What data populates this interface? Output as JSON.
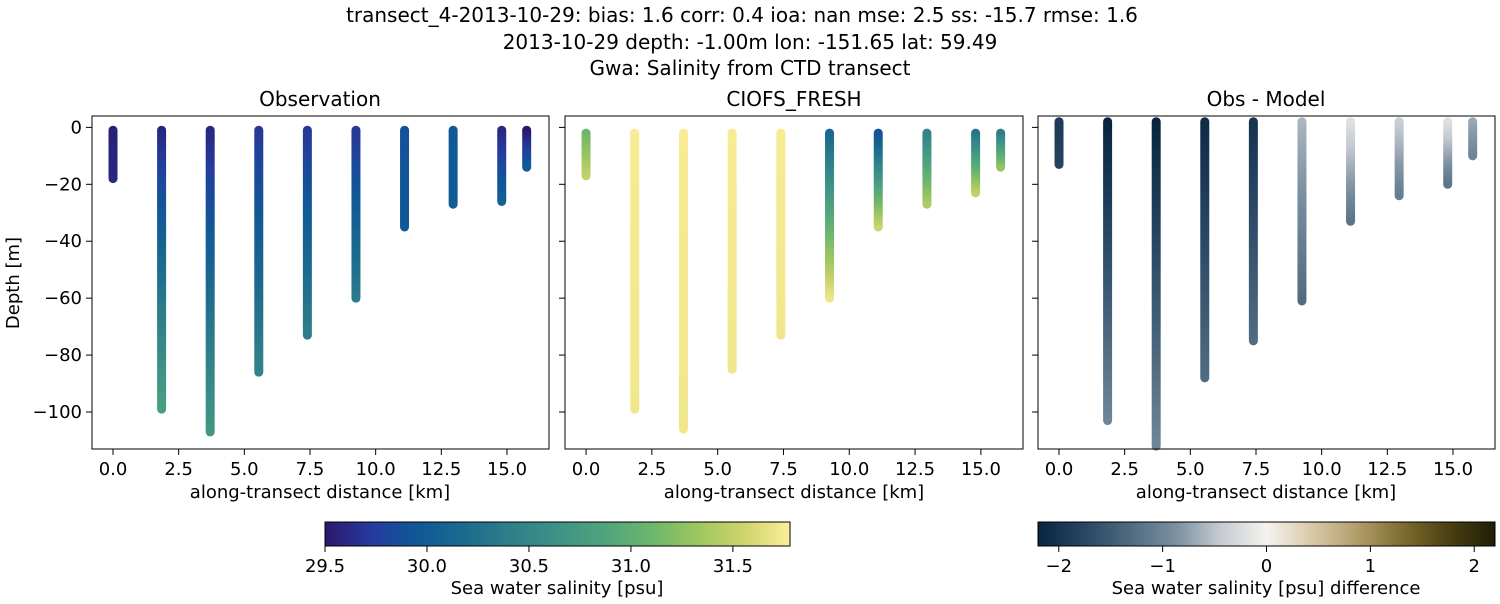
{
  "figure": {
    "title_lines": [
      "transect_4-2013-10-29: bias: 1.6  corr: 0.4  ioa: nan  mse: 2.5  ss: -15.7  rmse: 1.6",
      "2013-10-29 depth: -1.00m lon: -151.65 lat: 59.49",
      "Gwa: Salinity from CTD transect"
    ]
  },
  "chart_data": [
    {
      "type": "scatter",
      "title": "Observation",
      "xlabel": "along-transect distance [km]",
      "ylabel": "Depth [m]",
      "xlim": [
        -0.8,
        16.6
      ],
      "ylim": [
        -113,
        4
      ],
      "xticks": [
        0.0,
        2.5,
        5.0,
        7.5,
        10.0,
        12.5,
        15.0
      ],
      "xtick_labels": [
        "0.0",
        "2.5",
        "5.0",
        "7.5",
        "10.0",
        "12.5",
        "15.0"
      ],
      "yticks": [
        0,
        -20,
        -40,
        -60,
        -80,
        -100
      ],
      "ytick_labels": [
        "0",
        "−20",
        "−40",
        "−60",
        "−80",
        "−100"
      ],
      "colormap": "haline",
      "casts": [
        {
          "x": 0.0,
          "depth_top": -1,
          "depth_bottom": -18,
          "value_top": 29.55,
          "value_bottom": 29.6
        },
        {
          "x": 1.85,
          "depth_top": -1,
          "depth_bottom": -99,
          "value_top": 29.6,
          "value_bottom": 30.8
        },
        {
          "x": 3.7,
          "depth_top": -1,
          "depth_bottom": -107,
          "value_top": 29.6,
          "value_bottom": 30.7
        },
        {
          "x": 5.55,
          "depth_top": -1,
          "depth_bottom": -86,
          "value_top": 29.7,
          "value_bottom": 30.45
        },
        {
          "x": 7.4,
          "depth_top": -1,
          "depth_bottom": -73,
          "value_top": 29.7,
          "value_bottom": 30.4
        },
        {
          "x": 9.25,
          "depth_top": -1,
          "depth_bottom": -60,
          "value_top": 29.7,
          "value_bottom": 30.35
        },
        {
          "x": 11.1,
          "depth_top": -1,
          "depth_bottom": -35,
          "value_top": 29.9,
          "value_bottom": 29.95
        },
        {
          "x": 12.95,
          "depth_top": -1,
          "depth_bottom": -27,
          "value_top": 29.95,
          "value_bottom": 30.0
        },
        {
          "x": 14.8,
          "depth_top": -1,
          "depth_bottom": -26,
          "value_top": 29.6,
          "value_bottom": 30.05
        },
        {
          "x": 15.75,
          "depth_top": -1,
          "depth_bottom": -14,
          "value_top": 29.5,
          "value_bottom": 30.0
        }
      ]
    },
    {
      "type": "scatter",
      "title": "CIOFS_FRESH",
      "xlabel": "along-transect distance [km]",
      "xlim": [
        -0.8,
        16.6
      ],
      "ylim": [
        -113,
        4
      ],
      "xticks": [
        0.0,
        2.5,
        5.0,
        7.5,
        10.0,
        12.5,
        15.0
      ],
      "xtick_labels": [
        "0.0",
        "2.5",
        "5.0",
        "7.5",
        "10.0",
        "12.5",
        "15.0"
      ],
      "yticks": [
        0,
        -20,
        -40,
        -60,
        -80,
        -100
      ],
      "colormap": "haline",
      "casts": [
        {
          "x": 0.0,
          "depth_top": -2,
          "depth_bottom": -17,
          "value_top": 31.1,
          "value_bottom": 31.5
        },
        {
          "x": 1.85,
          "depth_top": -2,
          "depth_bottom": -99,
          "value_top": 31.75,
          "value_bottom": 31.72
        },
        {
          "x": 3.7,
          "depth_top": -2,
          "depth_bottom": -106,
          "value_top": 31.75,
          "value_bottom": 31.72
        },
        {
          "x": 5.55,
          "depth_top": -2,
          "depth_bottom": -85,
          "value_top": 31.75,
          "value_bottom": 31.72
        },
        {
          "x": 7.4,
          "depth_top": -2,
          "depth_bottom": -73,
          "value_top": 31.75,
          "value_bottom": 31.72
        },
        {
          "x": 9.25,
          "depth_top": -2,
          "depth_bottom": -60,
          "value_top": 30.15,
          "value_bottom": 31.7
        },
        {
          "x": 11.1,
          "depth_top": -2,
          "depth_bottom": -35,
          "value_top": 29.9,
          "value_bottom": 31.55
        },
        {
          "x": 12.95,
          "depth_top": -2,
          "depth_bottom": -27,
          "value_top": 30.45,
          "value_bottom": 31.4
        },
        {
          "x": 14.8,
          "depth_top": -2,
          "depth_bottom": -23,
          "value_top": 30.3,
          "value_bottom": 31.5
        },
        {
          "x": 15.75,
          "depth_top": -2,
          "depth_bottom": -14,
          "value_top": 30.4,
          "value_bottom": 31.3
        }
      ]
    },
    {
      "type": "scatter",
      "title": "Obs - Model",
      "xlabel": "along-transect distance [km]",
      "xlim": [
        -0.8,
        16.6
      ],
      "ylim": [
        -113,
        4
      ],
      "xticks": [
        0.0,
        2.5,
        5.0,
        7.5,
        10.0,
        12.5,
        15.0
      ],
      "xtick_labels": [
        "0.0",
        "2.5",
        "5.0",
        "7.5",
        "10.0",
        "12.5",
        "15.0"
      ],
      "yticks": [
        0,
        -20,
        -40,
        -60,
        -80,
        -100
      ],
      "colormap": "diff",
      "casts": [
        {
          "x": 0.0,
          "depth_top": 2,
          "depth_bottom": -13,
          "value_top": -1.9,
          "value_bottom": -1.8
        },
        {
          "x": 1.85,
          "depth_top": 2,
          "depth_bottom": -103,
          "value_top": -2.2,
          "value_bottom": -1.0
        },
        {
          "x": 3.7,
          "depth_top": 2,
          "depth_bottom": -112,
          "value_top": -2.2,
          "value_bottom": -1.0
        },
        {
          "x": 5.55,
          "depth_top": 2,
          "depth_bottom": -88,
          "value_top": -2.1,
          "value_bottom": -1.3
        },
        {
          "x": 7.4,
          "depth_top": 2,
          "depth_bottom": -75,
          "value_top": -2.0,
          "value_bottom": -1.3
        },
        {
          "x": 9.25,
          "depth_top": 2,
          "depth_bottom": -61,
          "value_top": -0.6,
          "value_bottom": -1.3
        },
        {
          "x": 11.1,
          "depth_top": 2,
          "depth_bottom": -33,
          "value_top": -0.2,
          "value_bottom": -1.2
        },
        {
          "x": 12.95,
          "depth_top": 2,
          "depth_bottom": -24,
          "value_top": -0.4,
          "value_bottom": -1.1
        },
        {
          "x": 14.8,
          "depth_top": 2,
          "depth_bottom": -20,
          "value_top": -0.2,
          "value_bottom": -1.2
        },
        {
          "x": 15.75,
          "depth_top": 2,
          "depth_bottom": -10,
          "value_top": -0.7,
          "value_bottom": -1.0
        }
      ]
    }
  ],
  "colorbars": [
    {
      "label": "Sea water salinity [psu]",
      "colormap": "haline",
      "vmin": 29.5,
      "vmax": 31.78,
      "ticks": [
        29.5,
        30.0,
        30.5,
        31.0,
        31.5
      ],
      "tick_labels": [
        "29.5",
        "30.0",
        "30.5",
        "31.0",
        "31.5"
      ]
    },
    {
      "label": "Sea water salinity [psu] difference",
      "colormap": "diff",
      "vmin": -2.2,
      "vmax": 2.2,
      "ticks": [
        -2,
        -1,
        0,
        1,
        2
      ],
      "tick_labels": [
        "−2",
        "−1",
        "0",
        "1",
        "2"
      ]
    }
  ],
  "colormaps": {
    "haline": [
      "#2a186c",
      "#253b9e",
      "#0f5997",
      "#1b6b8e",
      "#2f7f8a",
      "#3d9286",
      "#4fa47d",
      "#6bb66c",
      "#9dc660",
      "#cdd46b",
      "#fdee99"
    ],
    "diff": [
      "#08243f",
      "#274663",
      "#4f6a80",
      "#7a8fa0",
      "#c6cbd2",
      "#f5f2ee",
      "#d8c9a8",
      "#b19c6a",
      "#7d6b2f",
      "#4a4012",
      "#1f1d06"
    ]
  }
}
